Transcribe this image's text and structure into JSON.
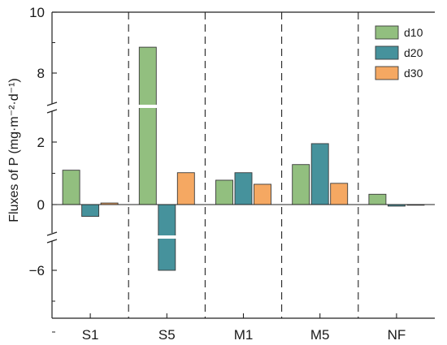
{
  "chart_data": {
    "type": "bar",
    "categories": [
      "S1",
      "S5",
      "M1",
      "M5",
      "NF"
    ],
    "series": [
      {
        "name": "d10",
        "color": "#92bf7f",
        "values": [
          1.1,
          8.85,
          0.78,
          1.28,
          0.33
        ]
      },
      {
        "name": "d20",
        "color": "#46929c",
        "values": [
          -0.38,
          -6.0,
          1.02,
          1.95,
          -0.05
        ]
      },
      {
        "name": "d30",
        "color": "#f5a862",
        "values": [
          0.05,
          1.02,
          0.65,
          0.68,
          0.0
        ]
      }
    ],
    "ylabel": "Fluxes of P (mg·m⁻²·d⁻¹)",
    "yticks": [
      "−6",
      "0",
      "2",
      "8",
      "10"
    ],
    "axis_breaks": [
      [
        2.9,
        7.2
      ],
      [
        -2.1,
        -5.0
      ]
    ],
    "ylim": [
      -9.0,
      10.0
    ],
    "legend_position": "top-right",
    "group_separators": "dashed vertical lines",
    "grid": false
  }
}
